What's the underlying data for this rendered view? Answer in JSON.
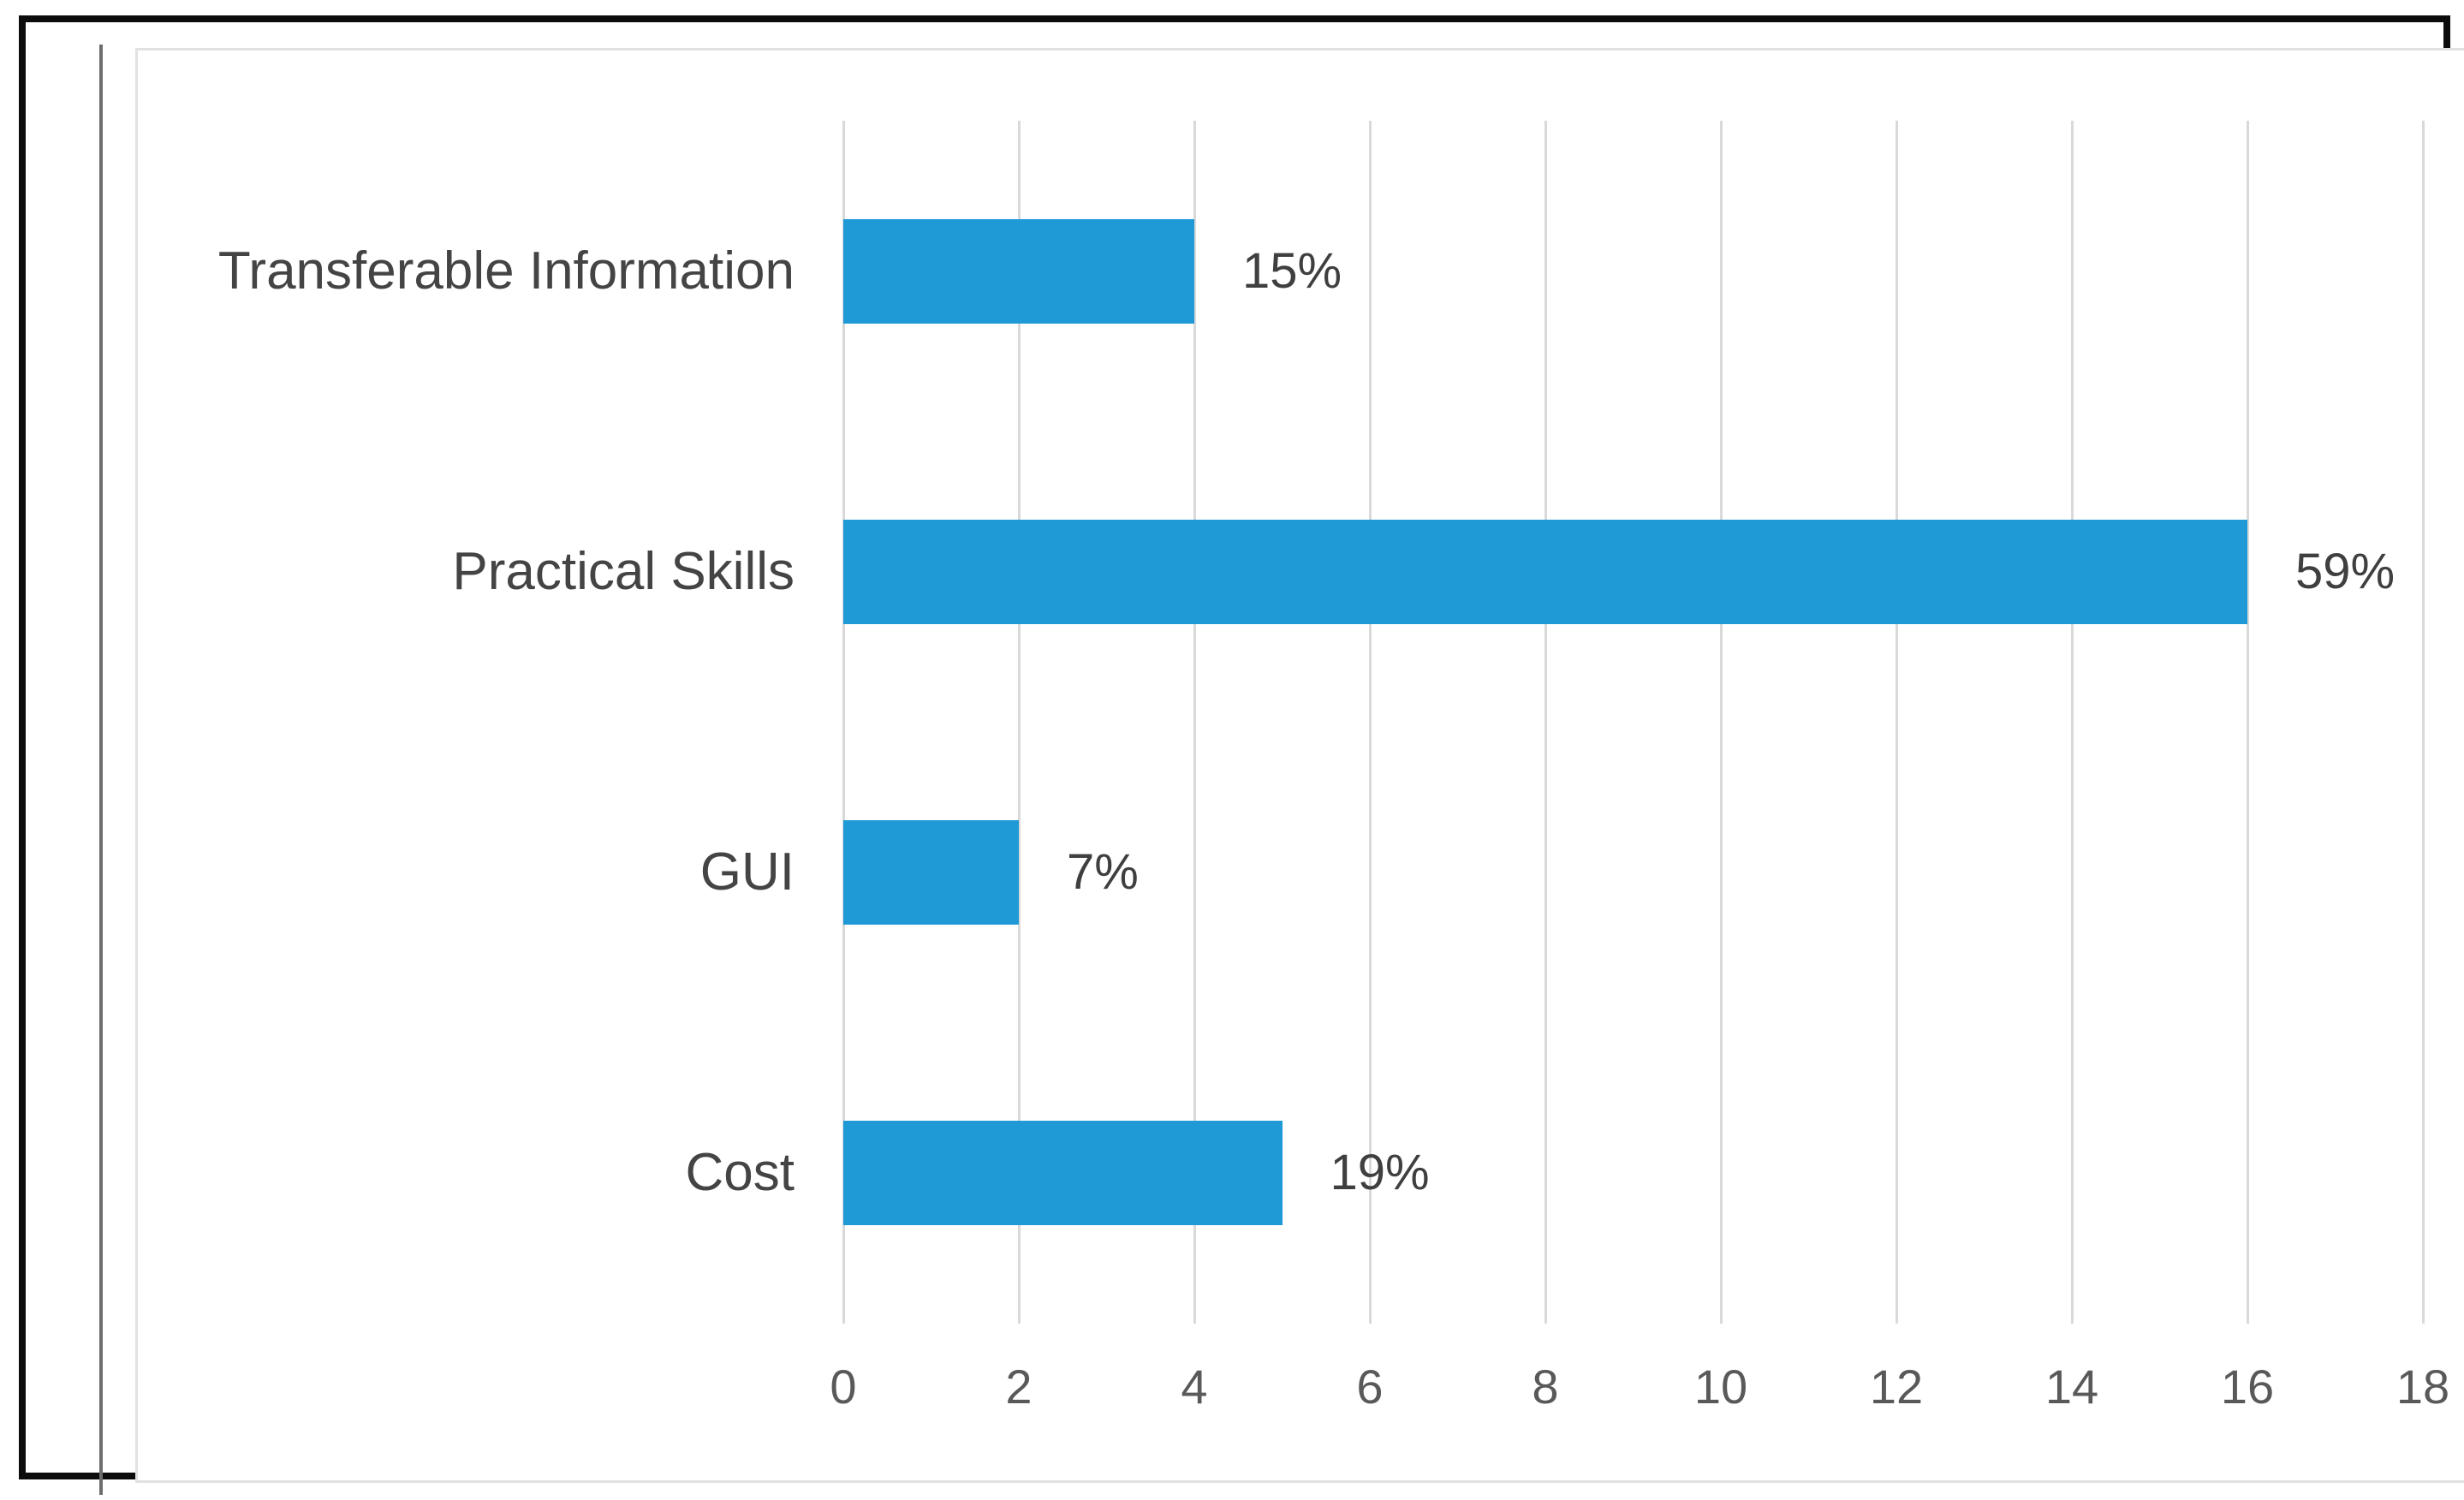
{
  "chart_data": {
    "type": "bar",
    "orientation": "horizontal",
    "title": "",
    "xlabel": "",
    "ylabel": "",
    "categories": [
      "Transferable Information",
      "Practical Skills",
      "GUI",
      "Cost"
    ],
    "values": [
      4,
      16,
      2,
      5
    ],
    "data_labels": [
      "15%",
      "59%",
      "7%",
      "19%"
    ],
    "x_ticks": [
      0,
      2,
      4,
      6,
      8,
      10,
      12,
      14,
      16,
      18
    ],
    "x_tick_labels": [
      "0",
      "2",
      "4",
      "6",
      "8",
      "10",
      "12",
      "14",
      "16",
      "18"
    ],
    "xlim": [
      0,
      18
    ],
    "grid": true,
    "legend": false,
    "bar_color": "#1f9ad7",
    "grid_color": "#d9d9d9",
    "category_label_color": "#444444",
    "data_label_color": "#3f3f3f",
    "tick_label_color": "#595959",
    "frame_color": "#0c0c0c",
    "chart_border_color": "#e1e1e1"
  }
}
